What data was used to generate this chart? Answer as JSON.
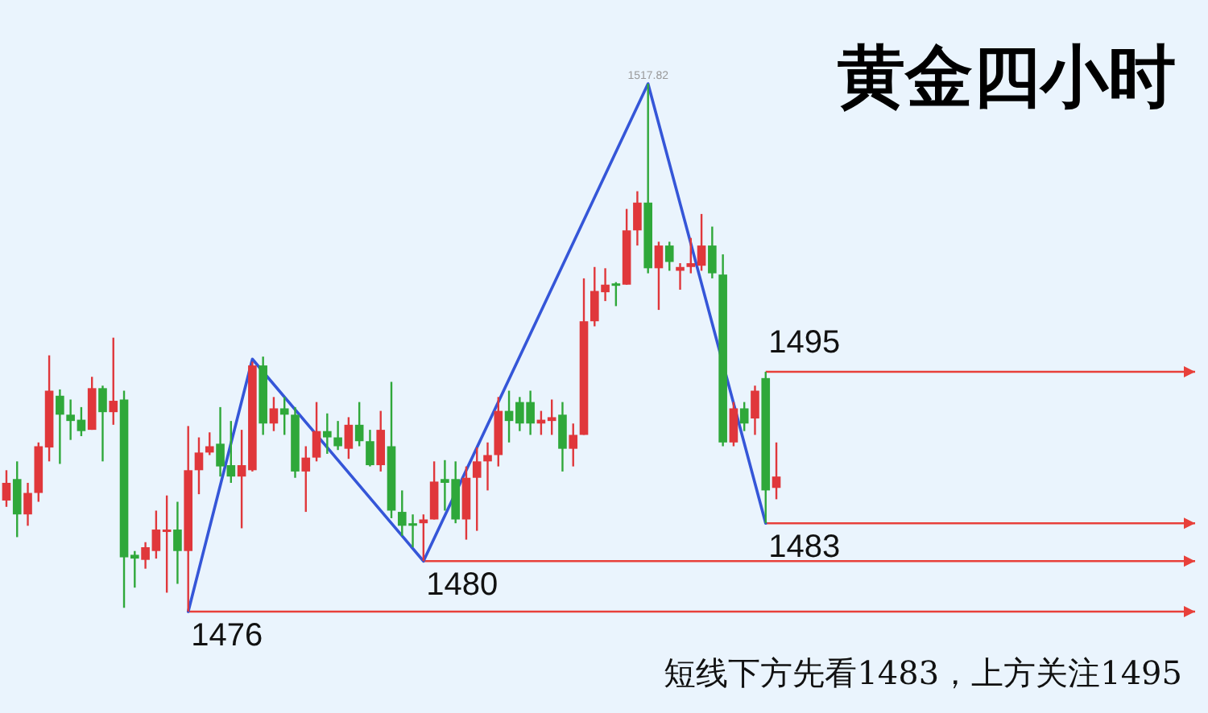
{
  "chart_data": {
    "type": "candlestick",
    "title": "黄金四小时",
    "categories": [
      null,
      null,
      null,
      null,
      null,
      null,
      null,
      null,
      null,
      null,
      null,
      null,
      null,
      null,
      null,
      null,
      null,
      null,
      null,
      null,
      null,
      null,
      null,
      null,
      null,
      null,
      null,
      null,
      null,
      null,
      null,
      null,
      null,
      null,
      null,
      null,
      null,
      null,
      null,
      null,
      null,
      null,
      null,
      null,
      null,
      null,
      null,
      null,
      null,
      null,
      null,
      null,
      null,
      null,
      null,
      null,
      null,
      null,
      null,
      null,
      null,
      null,
      null,
      null,
      null,
      null,
      null,
      null,
      null,
      null,
      null,
      null,
      null
    ],
    "ohlc": [
      [
        1484.8,
        1487.2,
        1484.3,
        1486.2
      ],
      [
        1486.5,
        1487.9,
        1481.9,
        1483.7
      ],
      [
        1483.7,
        1486.2,
        1482.8,
        1485.4
      ],
      [
        1485.4,
        1489.4,
        1484.7,
        1489.1
      ],
      [
        1489.0,
        1496.3,
        1487.9,
        1493.5
      ],
      [
        1493.1,
        1493.6,
        1487.7,
        1491.6
      ],
      [
        1491.6,
        1492.8,
        1489.6,
        1491.1
      ],
      [
        1491.2,
        1492.2,
        1489.9,
        1490.3
      ],
      [
        1490.4,
        1494.6,
        1490.4,
        1493.7
      ],
      [
        1493.7,
        1493.9,
        1487.9,
        1491.8
      ],
      [
        1491.8,
        1497.7,
        1490.8,
        1492.7
      ],
      [
        1492.8,
        1493.5,
        1476.3,
        1480.3
      ],
      [
        1480.5,
        1480.8,
        1477.9,
        1480.2
      ],
      [
        1480.1,
        1481.5,
        1479.4,
        1481.1
      ],
      [
        1480.8,
        1484.0,
        1480.2,
        1482.5
      ],
      [
        1482.4,
        1485.2,
        1477.5,
        1482.5
      ],
      [
        1482.5,
        1484.7,
        1478.2,
        1480.8
      ],
      [
        1480.8,
        1490.7,
        1476.0,
        1487.2
      ],
      [
        1487.2,
        1489.8,
        1485.3,
        1488.6
      ],
      [
        1488.6,
        1490.2,
        1488.4,
        1489.1
      ],
      [
        1489.3,
        1492.2,
        1486.7,
        1487.5
      ],
      [
        1487.6,
        1491.1,
        1486.2,
        1486.7
      ],
      [
        1486.7,
        1490.4,
        1482.6,
        1487.6
      ],
      [
        1487.2,
        1495.8,
        1487.1,
        1495.5
      ],
      [
        1495.5,
        1496.2,
        1490.0,
        1490.9
      ],
      [
        1490.9,
        1493.0,
        1490.3,
        1492.1
      ],
      [
        1492.1,
        1493.0,
        1490.0,
        1491.6
      ],
      [
        1491.6,
        1492.2,
        1486.6,
        1487.1
      ],
      [
        1487.1,
        1489.1,
        1483.9,
        1488.2
      ],
      [
        1488.2,
        1492.6,
        1487.9,
        1490.3
      ],
      [
        1490.3,
        1491.7,
        1488.5,
        1489.8
      ],
      [
        1489.8,
        1491.1,
        1488.8,
        1489.1
      ],
      [
        1488.9,
        1491.4,
        1488.1,
        1490.8
      ],
      [
        1490.8,
        1492.6,
        1489.1,
        1489.5
      ],
      [
        1489.5,
        1490.4,
        1487.5,
        1487.6
      ],
      [
        1487.6,
        1491.9,
        1487.1,
        1490.4
      ],
      [
        1489.1,
        1494.2,
        1483.4,
        1484.0
      ],
      [
        1483.9,
        1485.6,
        1482.0,
        1482.8
      ],
      [
        1483.0,
        1483.7,
        1481.1,
        1482.8
      ],
      [
        1483.0,
        1483.7,
        1480.0,
        1483.3
      ],
      [
        1483.3,
        1487.9,
        1483.3,
        1486.3
      ],
      [
        1486.5,
        1488.0,
        1484.0,
        1486.2
      ],
      [
        1486.5,
        1487.9,
        1483.0,
        1483.3
      ],
      [
        1483.3,
        1487.5,
        1481.7,
        1486.6
      ],
      [
        1486.6,
        1489.0,
        1482.4,
        1487.9
      ],
      [
        1487.9,
        1489.4,
        1485.6,
        1488.4
      ],
      [
        1488.4,
        1493.0,
        1487.5,
        1491.9
      ],
      [
        1491.9,
        1493.5,
        1489.4,
        1491.1
      ],
      [
        1492.6,
        1493.0,
        1490.3,
        1490.9
      ],
      [
        1492.6,
        1493.5,
        1490.0,
        1490.9
      ],
      [
        1490.9,
        1491.9,
        1490.0,
        1491.2
      ],
      [
        1491.1,
        1492.8,
        1490.0,
        1491.4
      ],
      [
        1491.6,
        1492.6,
        1487.1,
        1488.9
      ],
      [
        1488.9,
        1490.9,
        1487.5,
        1490.0
      ],
      [
        1490.0,
        1502.4,
        1490.0,
        1499.0
      ],
      [
        1499.0,
        1503.3,
        1498.6,
        1501.4
      ],
      [
        1501.3,
        1503.2,
        1500.6,
        1501.9
      ],
      [
        1502.0,
        1502.1,
        1500.2,
        1501.9
      ],
      [
        1501.9,
        1507.9,
        1501.9,
        1506.2
      ],
      [
        1506.2,
        1509.3,
        1505.0,
        1508.4
      ],
      [
        1508.4,
        1517.82,
        1502.8,
        1503.2
      ],
      [
        1503.2,
        1505.3,
        1499.9,
        1505.0
      ],
      [
        1505.0,
        1505.3,
        1503.0,
        1503.7
      ],
      [
        1503.0,
        1503.6,
        1501.5,
        1503.3
      ],
      [
        1503.3,
        1505.6,
        1502.8,
        1503.6
      ],
      [
        1503.4,
        1507.5,
        1503.0,
        1505.0
      ],
      [
        1505.0,
        1506.5,
        1502.4,
        1502.8
      ],
      [
        1502.7,
        1504.3,
        1489.1,
        1489.4
      ],
      [
        1489.4,
        1492.6,
        1489.1,
        1492.1
      ],
      [
        1492.1,
        1492.6,
        1490.3,
        1490.9
      ],
      [
        1491.3,
        1493.9,
        1490.0,
        1493.5
      ],
      [
        1494.5,
        1495.0,
        1483.0,
        1485.6
      ],
      [
        1485.8,
        1489.4,
        1484.9,
        1486.7
      ]
    ],
    "colors": [
      "#e0373b",
      "#2fa83a",
      "#e0373b",
      "#e0373b",
      "#e0373b",
      "#2fa83a",
      "#2fa83a",
      "#2fa83a",
      "#e0373b",
      "#2fa83a",
      "#e0373b",
      "#2fa83a",
      "#2fa83a",
      "#e0373b",
      "#e0373b",
      "#e0373b",
      "#2fa83a",
      "#e0373b",
      "#e0373b",
      "#e0373b",
      "#2fa83a",
      "#2fa83a",
      "#e0373b",
      "#e0373b",
      "#2fa83a",
      "#e0373b",
      "#2fa83a",
      "#2fa83a",
      "#e0373b",
      "#e0373b",
      "#2fa83a",
      "#2fa83a",
      "#e0373b",
      "#2fa83a",
      "#2fa83a",
      "#e0373b",
      "#2fa83a",
      "#2fa83a",
      "#2fa83a",
      "#e0373b",
      "#e0373b",
      "#2fa83a",
      "#2fa83a",
      "#e0373b",
      "#e0373b",
      "#e0373b",
      "#e0373b",
      "#2fa83a",
      "#2fa83a",
      "#2fa83a",
      "#e0373b",
      "#e0373b",
      "#2fa83a",
      "#e0373b",
      "#e0373b",
      "#e0373b",
      "#e0373b",
      "#2fa83a",
      "#e0373b",
      "#e0373b",
      "#2fa83a",
      "#e0373b",
      "#2fa83a",
      "#e0373b",
      "#e0373b",
      "#e0373b",
      "#2fa83a",
      "#2fa83a",
      "#e0373b",
      "#2fa83a",
      "#e0373b",
      "#2fa83a",
      "#e0373b"
    ],
    "series": [
      {
        "type": "line",
        "color": "#3556d8",
        "values": [
          null,
          null,
          null,
          null,
          null,
          null,
          null,
          null,
          null,
          null,
          null,
          null,
          null,
          null,
          null,
          null,
          null,
          1476,
          null,
          null,
          null,
          null,
          null,
          1496,
          null,
          null,
          null,
          null,
          null,
          null,
          null,
          null,
          null,
          null,
          null,
          null,
          null,
          null,
          null,
          1480,
          null,
          null,
          null,
          null,
          null,
          null,
          null,
          null,
          null,
          null,
          null,
          null,
          null,
          null,
          null,
          null,
          null,
          null,
          null,
          null,
          1517.82,
          null,
          null,
          null,
          null,
          null,
          null,
          null,
          null,
          null,
          null,
          1483,
          null
        ]
      }
    ],
    "ref_lines": [
      {
        "axis": "y",
        "value": 1476,
        "label": "1476",
        "color": "#e8403a"
      },
      {
        "axis": "y",
        "value": 1480,
        "label": "1480",
        "color": "#e8403a"
      },
      {
        "axis": "y",
        "value": 1483,
        "label": "1483",
        "color": "#e8403a"
      },
      {
        "axis": "y",
        "value": 1495,
        "label": "1495",
        "color": "#e8403a"
      }
    ],
    "annotations": [
      {
        "text": "1517.82",
        "y": 1517.82
      },
      "短线下方先看1483，上方关注1495"
    ]
  }
}
